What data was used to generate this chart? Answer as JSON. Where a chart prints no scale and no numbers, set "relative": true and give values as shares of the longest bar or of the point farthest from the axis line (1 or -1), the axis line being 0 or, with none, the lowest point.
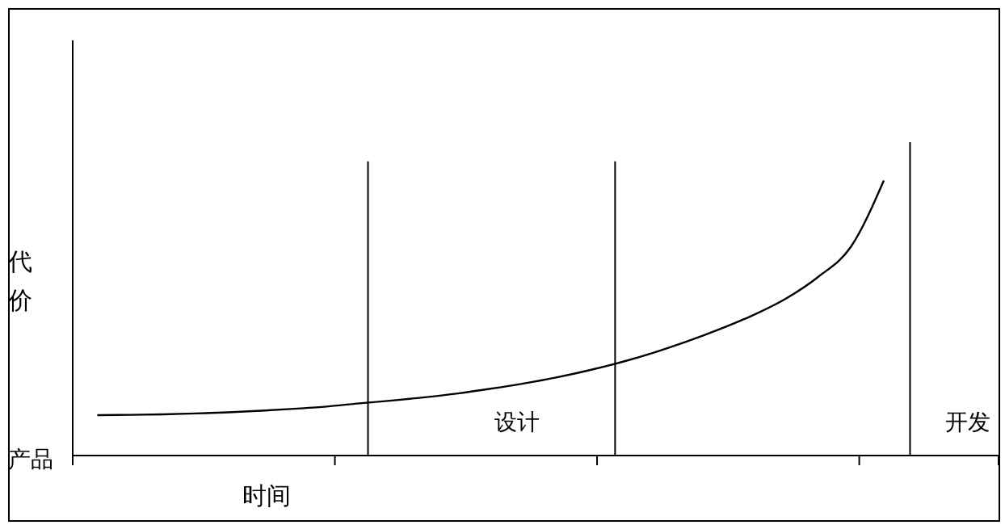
{
  "chart_data": {
    "type": "line",
    "relative": true,
    "ylabel": "代价",
    "xlabel": "时间",
    "annotations": [
      "产品",
      "设计",
      "开发"
    ],
    "categories": [
      null,
      null,
      null,
      null,
      null,
      null,
      null,
      null,
      null,
      null,
      null,
      null,
      null,
      null,
      null,
      null,
      null,
      null,
      null,
      null,
      null,
      null,
      null,
      null,
      null
    ],
    "series": [
      {
        "color": "#000000",
        "values": [
          0.147,
          0.148,
          0.15,
          0.153,
          0.157,
          0.163,
          0.17,
          0.178,
          0.19,
          0.2,
          0.212,
          0.226,
          0.243,
          0.262,
          0.284,
          0.31,
          0.34,
          0.375,
          0.415,
          0.46,
          0.51,
          0.57,
          0.65,
          0.76,
          1.0
        ]
      }
    ],
    "marker": "none",
    "line_style": "solid",
    "grid": false,
    "legend": false
  }
}
